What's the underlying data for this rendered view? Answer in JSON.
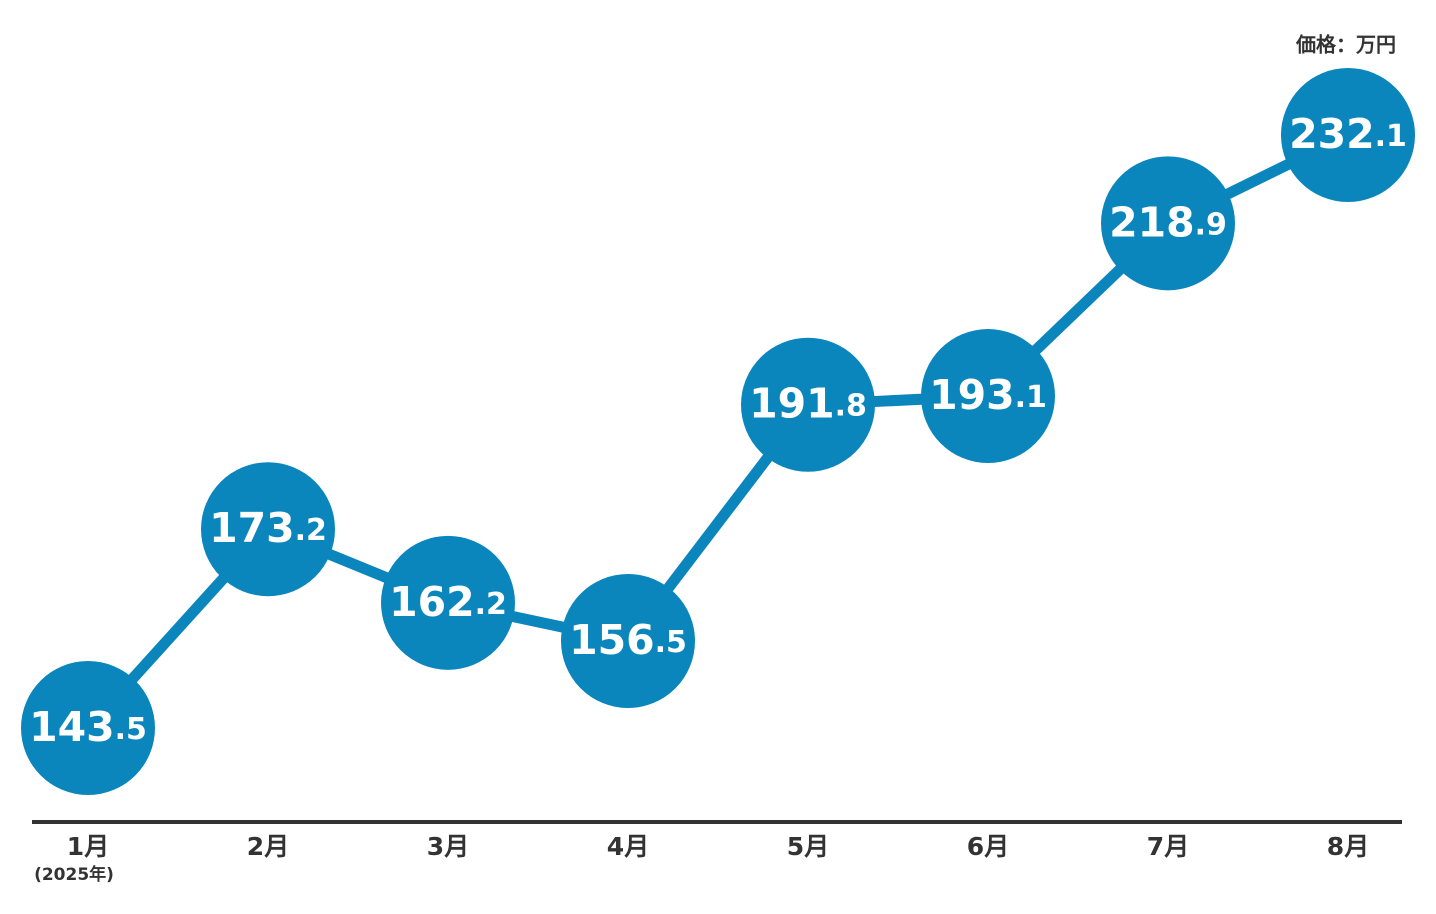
{
  "chart_data": {
    "type": "line",
    "unit_label": "価格：万円",
    "categories": [
      "1月",
      "2月",
      "3月",
      "4月",
      "5月",
      "6月",
      "7月",
      "8月"
    ],
    "first_category_note": "(2025年)",
    "values": [
      143.5,
      173.2,
      162.2,
      156.5,
      191.8,
      193.1,
      218.9,
      232.1
    ],
    "color": "#0a86bd"
  }
}
